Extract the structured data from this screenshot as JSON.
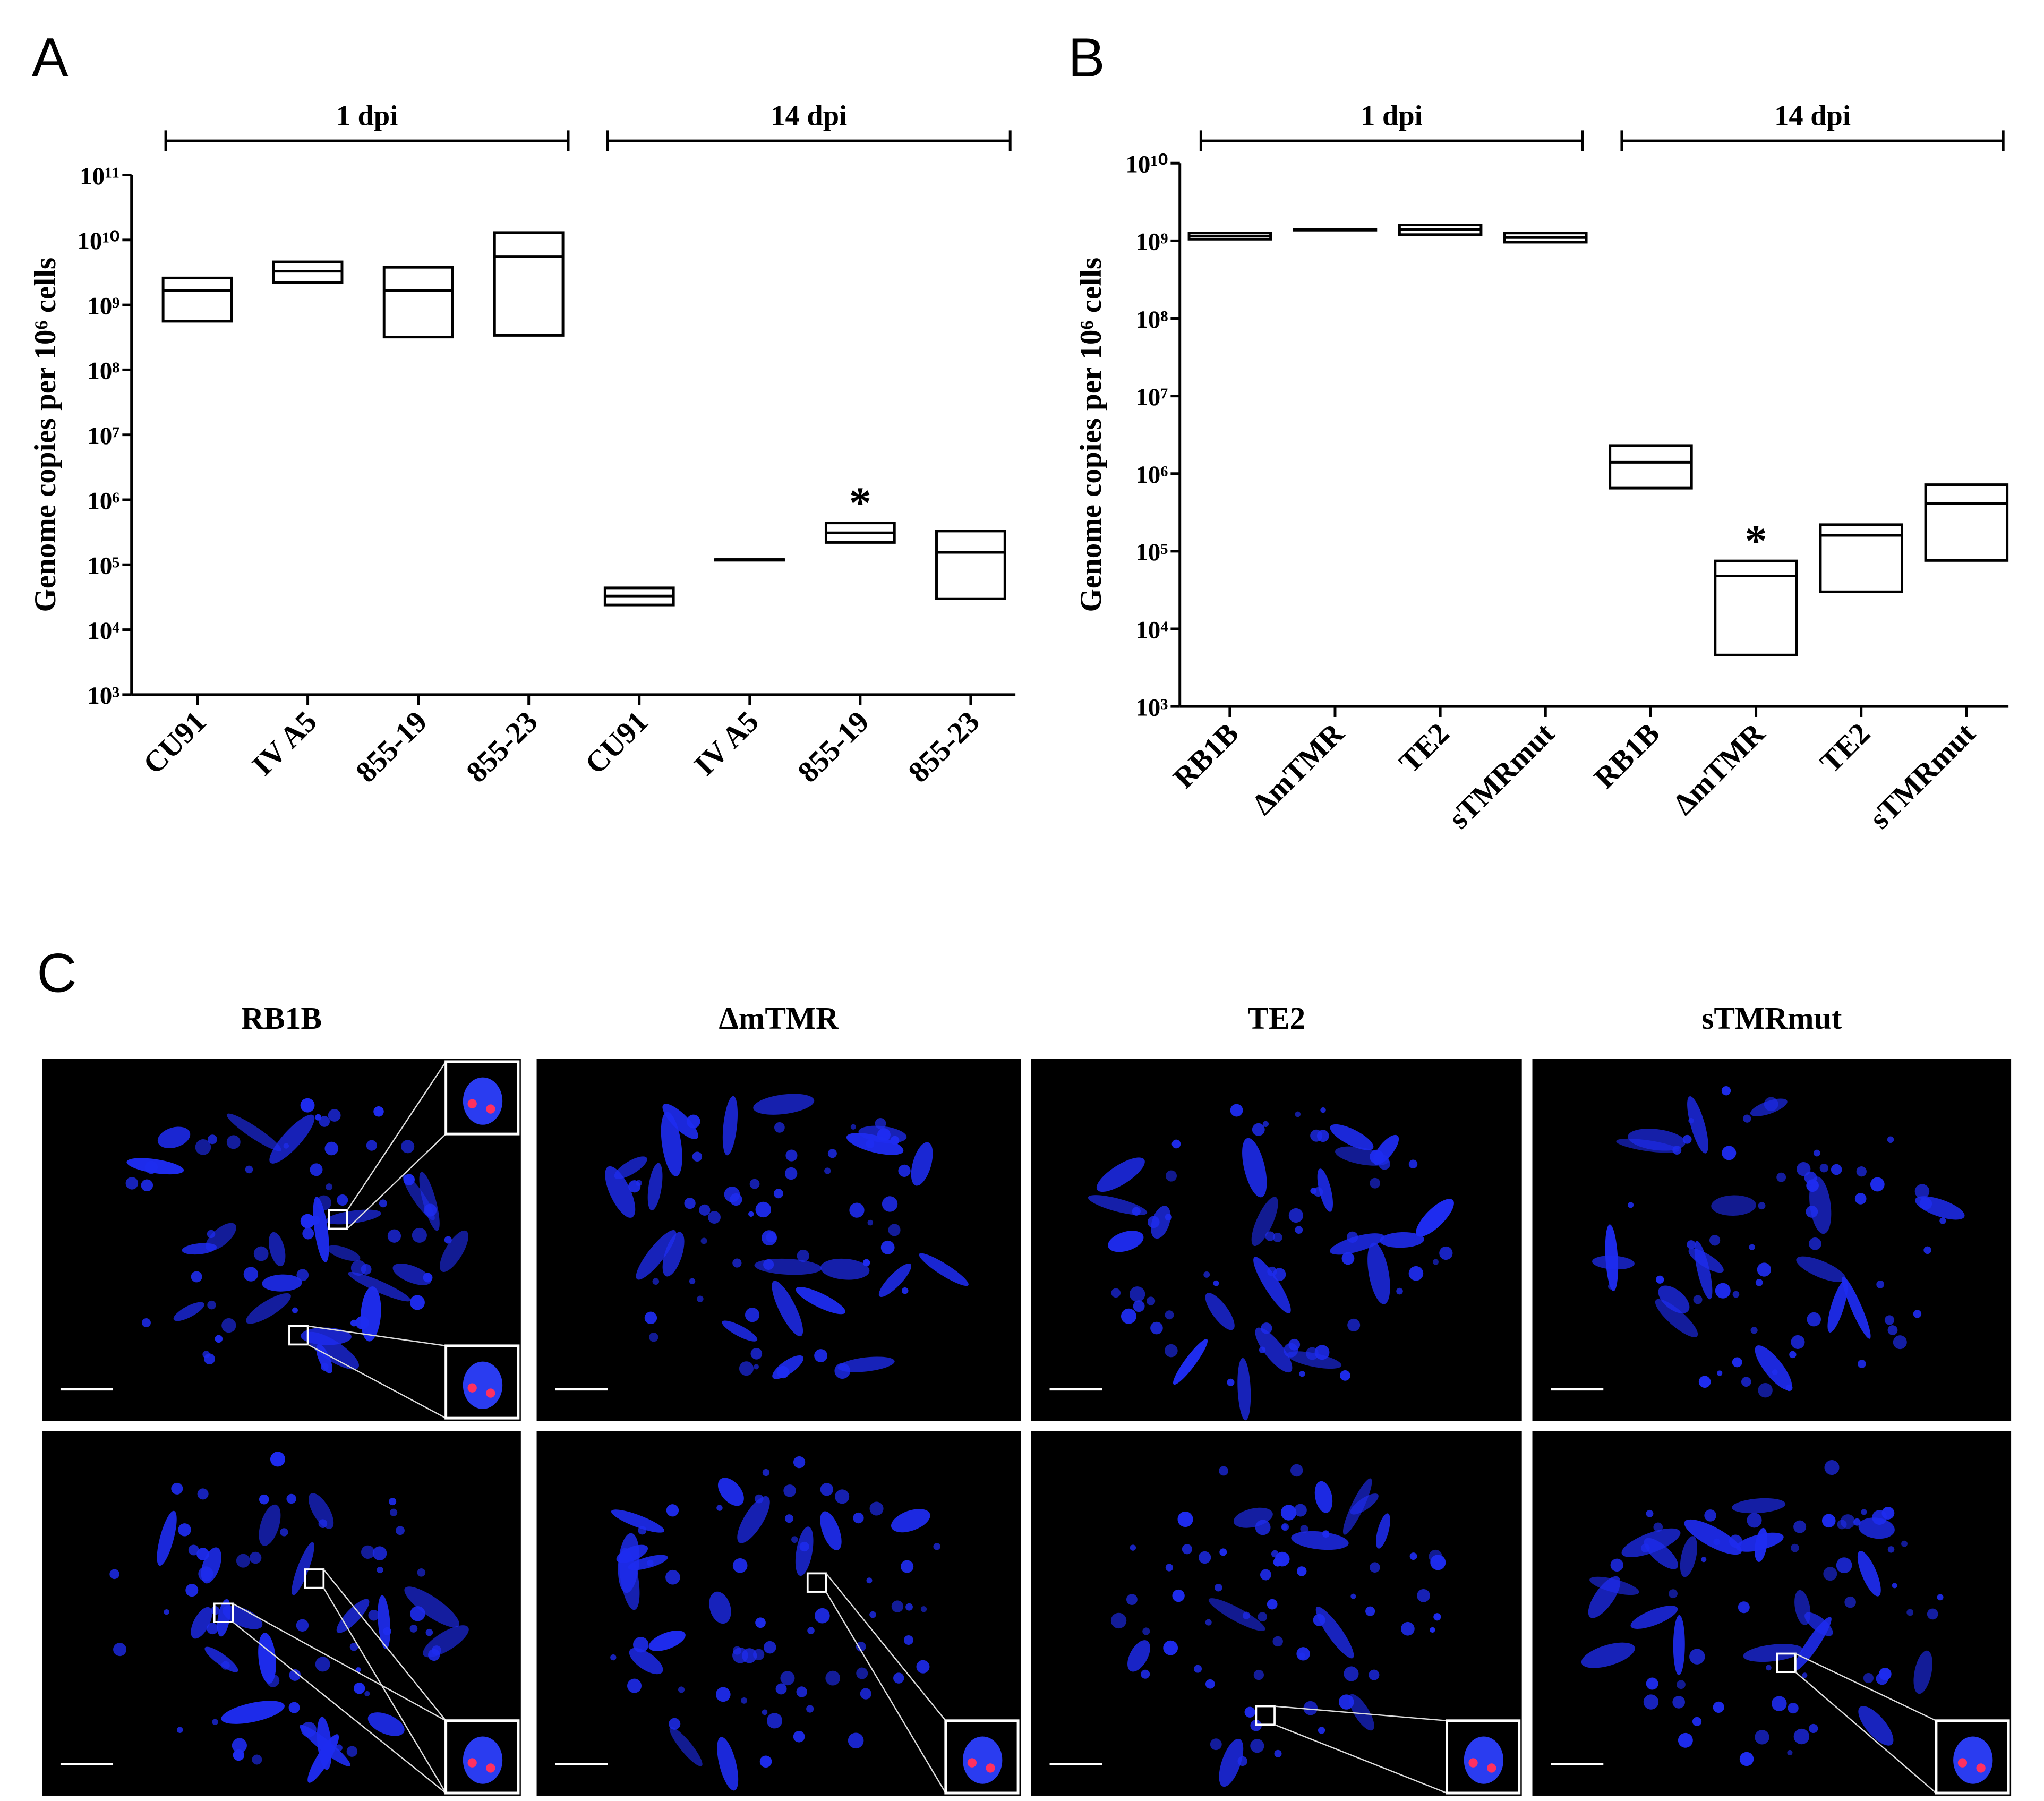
{
  "chart_data": [
    {
      "type": "floating_bar",
      "panel_label": "A",
      "y_label": "Genome copies per 10⁶ cells",
      "groups": [
        "1 dpi",
        "14 dpi"
      ],
      "categories": [
        "CU91",
        "IV A5",
        "855-19",
        "855-23",
        "CU91",
        "IV A5",
        "855-19",
        "855-23"
      ],
      "high": [
        2600000000.0,
        4600000000.0,
        3800000000.0,
        13000000000.0,
        44000.0,
        120000.0,
        440000.0,
        330000.0
      ],
      "median": [
        1660000000.0,
        3300000000.0,
        1660000000.0,
        5500000000.0,
        33000.0,
        120000.0,
        310000.0,
        155000.0
      ],
      "low": [
        560000000.0,
        2200000000.0,
        320000000.0,
        340000000.0,
        24000.0,
        120000.0,
        220000.0,
        30000.0
      ],
      "annotations": [
        null,
        null,
        null,
        null,
        null,
        null,
        "*",
        null
      ],
      "color": "#000000",
      "log_scale": true,
      "ylim": [
        1000,
        100000000000.0
      ],
      "yticks": [
        {
          "value": 1000,
          "label": "10³"
        },
        {
          "value": 10000,
          "label": "10⁴"
        },
        {
          "value": 100000,
          "label": "10⁵"
        },
        {
          "value": 1000000,
          "label": "10⁶"
        },
        {
          "value": 10000000.0,
          "label": "10⁷"
        },
        {
          "value": 100000000.0,
          "label": "10⁸"
        },
        {
          "value": 1000000000.0,
          "label": "10⁹"
        },
        {
          "value": 10000000000.0,
          "label": "10¹⁰"
        },
        {
          "value": 100000000000.0,
          "label": "10¹¹"
        }
      ]
    },
    {
      "type": "floating_bar",
      "panel_label": "B",
      "y_label": "Genome copies per 10⁶ cells",
      "groups": [
        "1 dpi",
        "14 dpi"
      ],
      "categories": [
        "RB1B",
        "ΔmTMR",
        "TE2",
        "sTMRmut",
        "RB1B",
        "ΔmTMR",
        "TE2",
        "sTMRmut"
      ],
      "high": [
        1260000000.0,
        1400000000.0,
        1600000000.0,
        1260000000.0,
        2300000.0,
        75000.0,
        220000.0,
        720000.0
      ],
      "median": [
        1150000000.0,
        1400000000.0,
        1400000000.0,
        1100000000.0,
        1400000.0,
        48000.0,
        160000.0,
        410000.0
      ],
      "low": [
        1050000000.0,
        1400000000.0,
        1200000000.0,
        960000000.0,
        650000.0,
        4600.0,
        30000.0,
        76000.0
      ],
      "annotations": [
        null,
        null,
        null,
        null,
        null,
        "*",
        null,
        null
      ],
      "color": "#000000",
      "log_scale": true,
      "ylim": [
        1000,
        10000000000.0
      ],
      "yticks": [
        {
          "value": 1000,
          "label": "10³"
        },
        {
          "value": 10000,
          "label": "10⁴"
        },
        {
          "value": 100000,
          "label": "10⁵"
        },
        {
          "value": 1000000,
          "label": "10⁶"
        },
        {
          "value": 10000000.0,
          "label": "10⁷"
        },
        {
          "value": 100000000.0,
          "label": "10⁸"
        },
        {
          "value": 1000000000.0,
          "label": "10⁹"
        },
        {
          "value": 10000000000.0,
          "label": "10¹⁰"
        }
      ]
    }
  ],
  "panel_c": {
    "label": "C",
    "columns": [
      "RB1B",
      "ΔmTMR",
      "TE2",
      "sTMRmut"
    ]
  }
}
